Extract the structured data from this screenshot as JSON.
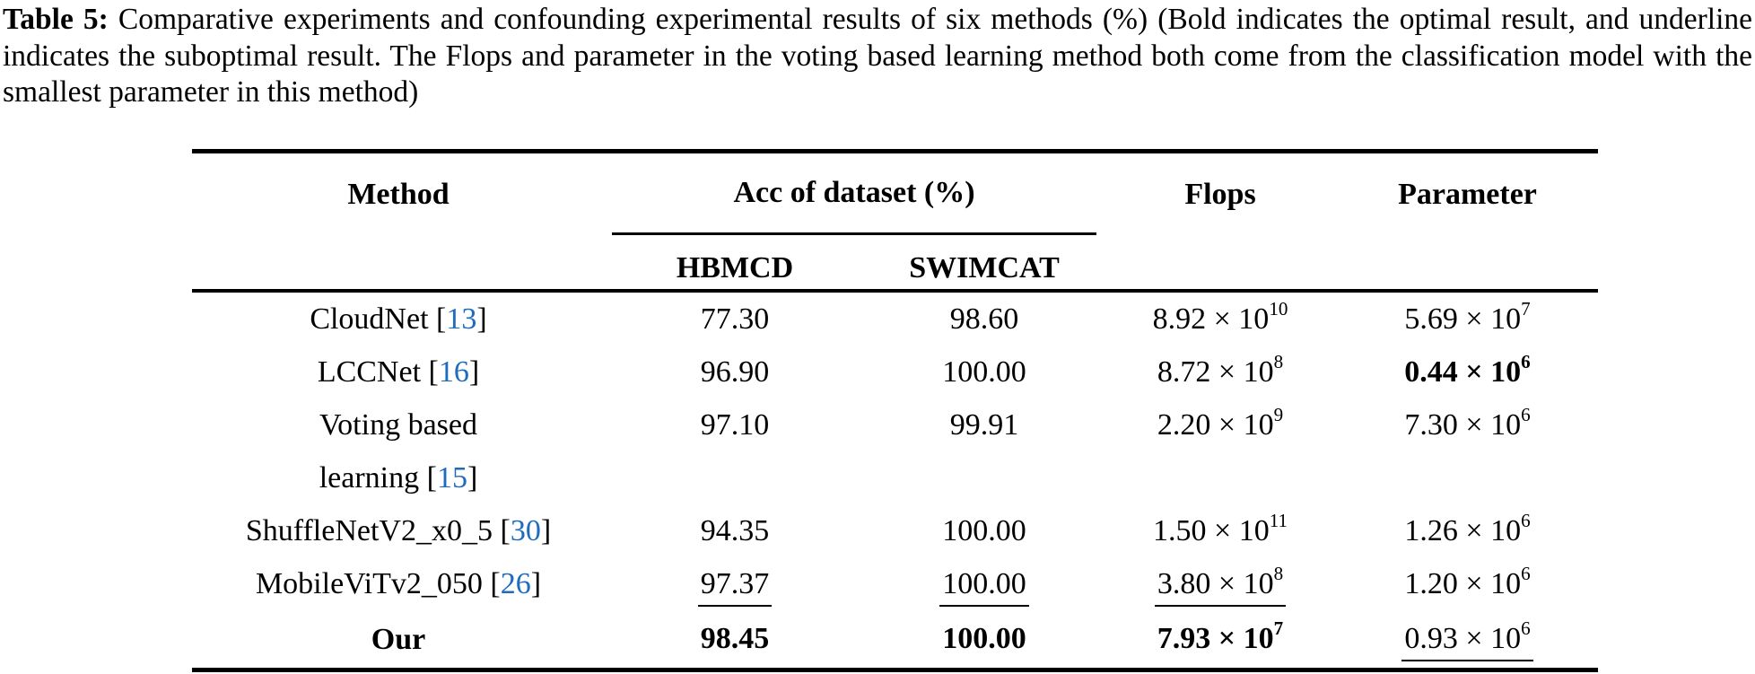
{
  "caption": {
    "label": "Table 5:",
    "text": " Comparative experiments and confounding experimental results of six methods (%) (Bold indicates the optimal result, and underline indicates the suboptimal result. The Flops and parameter in the voting based learning method both come from the classification model with the smallest parameter in this method)"
  },
  "colors": {
    "text": "#000000",
    "citation_blue": "#1e6bbf",
    "rule_black": "#000000"
  },
  "table": {
    "headers": {
      "method": "Method",
      "acc_group": "Acc of dataset (%)",
      "sub_hbmcd": "HBMCD",
      "sub_swimcat": "SWIMCAT",
      "flops": "Flops",
      "parameter": "Parameter"
    },
    "rows": [
      {
        "method": {
          "bold": false,
          "lines": [
            [
              {
                "t": "CloudNet ["
              },
              {
                "c": "13"
              },
              {
                "t": "]"
              }
            ]
          ]
        },
        "hbmcd": {
          "v": "77.30"
        },
        "swimcat": {
          "v": "98.60"
        },
        "flops": {
          "v": "8.92 × 10",
          "e": "10"
        },
        "param": {
          "v": "5.69 × 10",
          "e": "7"
        }
      },
      {
        "method": {
          "bold": false,
          "lines": [
            [
              {
                "t": "LCCNet ["
              },
              {
                "c": "16"
              },
              {
                "t": "]"
              }
            ]
          ]
        },
        "hbmcd": {
          "v": "96.90"
        },
        "swimcat": {
          "v": "100.00"
        },
        "flops": {
          "v": "8.72 × 10",
          "e": "8"
        },
        "param": {
          "v": "0.44 × 10",
          "e": "6",
          "b": true
        }
      },
      {
        "method": {
          "bold": false,
          "two_line": true,
          "lines": [
            [
              {
                "t": "Voting based"
              }
            ],
            [
              {
                "t": "learning ["
              },
              {
                "c": "15"
              },
              {
                "t": "]"
              }
            ]
          ]
        },
        "hbmcd": {
          "v": "97.10"
        },
        "swimcat": {
          "v": "99.91"
        },
        "flops": {
          "v": "2.20 × 10",
          "e": "9"
        },
        "param": {
          "v": "7.30 × 10",
          "e": "6"
        }
      },
      {
        "method": {
          "bold": false,
          "lines": [
            [
              {
                "t": "ShuffleNetV2_x0_5 ["
              },
              {
                "c": "30"
              },
              {
                "t": "]"
              }
            ]
          ]
        },
        "hbmcd": {
          "v": "94.35"
        },
        "swimcat": {
          "v": "100.00"
        },
        "flops": {
          "v": "1.50 × 10",
          "e": "11"
        },
        "param": {
          "v": "1.26 × 10",
          "e": "6"
        }
      },
      {
        "method": {
          "bold": false,
          "lines": [
            [
              {
                "t": "MobileViTv2_050 ["
              },
              {
                "c": "26"
              },
              {
                "t": "]"
              }
            ]
          ]
        },
        "hbmcd": {
          "v": "97.37",
          "u": true
        },
        "swimcat": {
          "v": "100.00",
          "u": true
        },
        "flops": {
          "v": "3.80 × 10",
          "e": "8",
          "u": true
        },
        "param": {
          "v": "1.20 × 10",
          "e": "6"
        }
      },
      {
        "method": {
          "bold": true,
          "last": true,
          "lines": [
            [
              {
                "t": "Our"
              }
            ]
          ]
        },
        "hbmcd": {
          "v": "98.45",
          "b": true
        },
        "swimcat": {
          "v": "100.00",
          "b": true
        },
        "flops": {
          "v": "7.93 × 10",
          "e": "7",
          "b": true
        },
        "param": {
          "v": "0.93 × 10",
          "e": "6",
          "u": true
        }
      }
    ]
  }
}
